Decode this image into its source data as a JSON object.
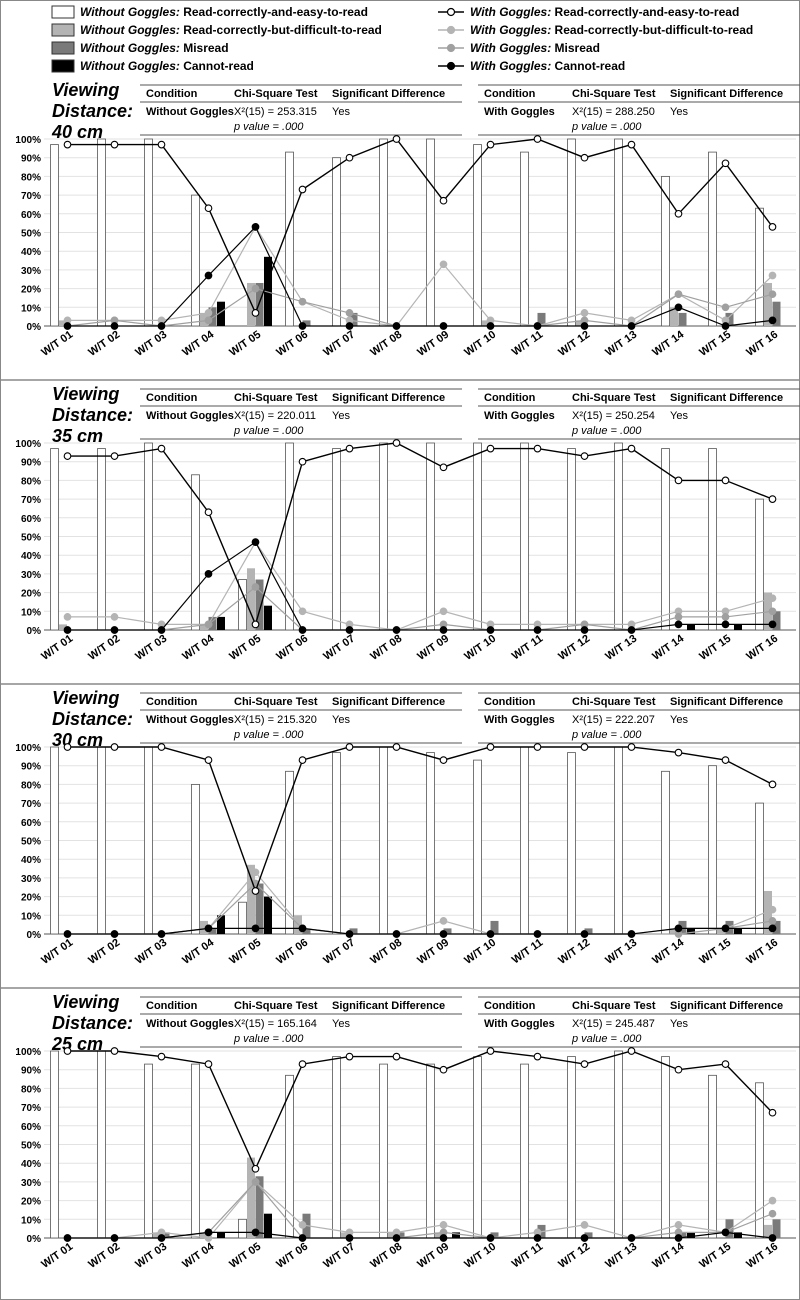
{
  "legend": {
    "left": [
      {
        "prefix": "Without Goggles:",
        "text": "Read-correctly-and-easy-to-read",
        "key": "easy",
        "kind": "bar"
      },
      {
        "prefix": "Without Goggles:",
        "text": "Read-correctly-but-difficult-to-read",
        "key": "diff",
        "kind": "bar"
      },
      {
        "prefix": "Without Goggles:",
        "text": "Misread",
        "key": "mis",
        "kind": "bar"
      },
      {
        "prefix": "Without Goggles:",
        "text": "Cannot-read",
        "key": "cant",
        "kind": "bar"
      }
    ],
    "right": [
      {
        "prefix": "With Goggles:",
        "text": "Read-correctly-and-easy-to-read",
        "key": "easy",
        "kind": "line"
      },
      {
        "prefix": "With Goggles:",
        "text": "Read-correctly-but-difficult-to-read",
        "key": "diff",
        "kind": "line"
      },
      {
        "prefix": "With Goggles:",
        "text": "Misread",
        "key": "mis",
        "kind": "line"
      },
      {
        "prefix": "With Goggles:",
        "text": "Cannot-read",
        "key": "cant",
        "kind": "line"
      }
    ]
  },
  "colors": {
    "easy": "#ffffff",
    "diff": "#b4b4b4",
    "mis": "#7a7a7a",
    "cant": "#000000",
    "easy_line": "#000000",
    "diff_line": "#b4b4b4",
    "mis_line": "#a0a0a0",
    "cant_line": "#000000"
  },
  "table_headers": [
    "Condition",
    "Chi-Square Test",
    "Significant Difference"
  ],
  "chart_data": [
    {
      "type": "bar",
      "title_lines": [
        "Viewing",
        "Distance:",
        "40 cm"
      ],
      "categories": [
        "W/T 01",
        "W/T 02",
        "W/T 03",
        "W/T 04",
        "W/T 05",
        "W/T 06",
        "W/T 07",
        "W/T 08",
        "W/T 09",
        "W/T 10",
        "W/T 11",
        "W/T 12",
        "W/T 13",
        "W/T 14",
        "W/T 15",
        "W/T 16"
      ],
      "y_ticks": [
        "0%",
        "10%",
        "20%",
        "30%",
        "40%",
        "50%",
        "60%",
        "70%",
        "80%",
        "90%",
        "100%"
      ],
      "ylim": [
        0,
        100
      ],
      "stats": [
        {
          "condition": "Without Goggles",
          "chi": "X²(15) = 253.315",
          "p": "p value = .000",
          "sig": "Yes"
        },
        {
          "condition": "With Goggles",
          "chi": "X²(15) = 288.250",
          "p": "p value = .000",
          "sig": "Yes"
        }
      ],
      "without": {
        "easy": [
          97,
          100,
          100,
          70,
          0,
          93,
          90,
          100,
          100,
          97,
          93,
          100,
          100,
          80,
          93,
          63
        ],
        "diff": [
          3,
          0,
          0,
          7,
          23,
          0,
          0,
          0,
          0,
          3,
          0,
          3,
          0,
          10,
          0,
          23
        ],
        "mis": [
          0,
          0,
          0,
          10,
          23,
          3,
          7,
          0,
          0,
          0,
          7,
          0,
          0,
          7,
          7,
          13
        ],
        "cant": [
          0,
          0,
          0,
          13,
          37,
          0,
          0,
          0,
          0,
          0,
          0,
          0,
          0,
          0,
          0,
          0
        ]
      },
      "with": {
        "easy": [
          97,
          97,
          97,
          63,
          7,
          73,
          90,
          100,
          67,
          97,
          100,
          90,
          97,
          60,
          87,
          53
        ],
        "diff": [
          3,
          3,
          3,
          7,
          53,
          13,
          3,
          0,
          33,
          3,
          0,
          7,
          3,
          17,
          3,
          27
        ],
        "mis": [
          0,
          3,
          0,
          3,
          20,
          13,
          7,
          0,
          0,
          0,
          0,
          3,
          0,
          17,
          10,
          17
        ],
        "cant": [
          0,
          0,
          0,
          27,
          53,
          0,
          0,
          0,
          0,
          0,
          0,
          0,
          0,
          10,
          0,
          3
        ]
      }
    },
    {
      "type": "bar",
      "title_lines": [
        "Viewing",
        "Distance:",
        "35 cm"
      ],
      "categories": [
        "W/T 01",
        "W/T 02",
        "W/T 03",
        "W/T 04",
        "W/T 05",
        "W/T 06",
        "W/T 07",
        "W/T 08",
        "W/T 09",
        "W/T 10",
        "W/T 11",
        "W/T 12",
        "W/T 13",
        "W/T 14",
        "W/T 15",
        "W/T 16"
      ],
      "y_ticks": [
        "0%",
        "10%",
        "20%",
        "30%",
        "40%",
        "50%",
        "60%",
        "70%",
        "80%",
        "90%",
        "100%"
      ],
      "ylim": [
        0,
        100
      ],
      "stats": [
        {
          "condition": "Without Goggles",
          "chi": "X²(15) = 220.011",
          "p": "p value = .000",
          "sig": "Yes"
        },
        {
          "condition": "With Goggles",
          "chi": "X²(15) = 250.254",
          "p": "p value = .000",
          "sig": "Yes"
        }
      ],
      "without": {
        "easy": [
          97,
          97,
          100,
          83,
          27,
          100,
          97,
          100,
          100,
          100,
          100,
          97,
          100,
          97,
          97,
          70
        ],
        "diff": [
          3,
          0,
          0,
          3,
          33,
          0,
          0,
          0,
          0,
          0,
          0,
          0,
          0,
          0,
          0,
          20
        ],
        "mis": [
          0,
          0,
          0,
          7,
          27,
          0,
          0,
          0,
          0,
          0,
          0,
          0,
          0,
          0,
          0,
          10
        ],
        "cant": [
          0,
          0,
          0,
          7,
          13,
          0,
          0,
          0,
          0,
          0,
          0,
          0,
          0,
          3,
          3,
          0
        ]
      },
      "with": {
        "easy": [
          93,
          93,
          97,
          63,
          3,
          90,
          97,
          100,
          87,
          97,
          97,
          93,
          97,
          80,
          80,
          70
        ],
        "diff": [
          7,
          7,
          3,
          3,
          47,
          10,
          3,
          0,
          10,
          3,
          3,
          3,
          3,
          10,
          10,
          17
        ],
        "mis": [
          0,
          0,
          0,
          3,
          23,
          0,
          0,
          0,
          3,
          0,
          0,
          3,
          0,
          7,
          7,
          10
        ],
        "cant": [
          0,
          0,
          0,
          30,
          47,
          0,
          0,
          0,
          0,
          0,
          0,
          0,
          0,
          3,
          3,
          3
        ]
      }
    },
    {
      "type": "bar",
      "title_lines": [
        "Viewing",
        "Distance:",
        "30 cm"
      ],
      "categories": [
        "W/T 01",
        "W/T 02",
        "W/T 03",
        "W/T 04",
        "W/T 05",
        "W/T 06",
        "W/T 07",
        "W/T 08",
        "W/T 09",
        "W/T 10",
        "W/T 11",
        "W/T 12",
        "W/T 13",
        "W/T 14",
        "W/T 15",
        "W/T 16"
      ],
      "y_ticks": [
        "0%",
        "10%",
        "20%",
        "30%",
        "40%",
        "50%",
        "60%",
        "70%",
        "80%",
        "90%",
        "100%"
      ],
      "ylim": [
        0,
        100
      ],
      "stats": [
        {
          "condition": "Without Goggles",
          "chi": "X²(15) = 215.320",
          "p": "p value = .000",
          "sig": "Yes"
        },
        {
          "condition": "With Goggles",
          "chi": "X²(15) = 222.207",
          "p": "p value = .000",
          "sig": "Yes"
        }
      ],
      "without": {
        "easy": [
          100,
          100,
          100,
          80,
          17,
          87,
          97,
          100,
          97,
          93,
          100,
          97,
          100,
          87,
          90,
          70
        ],
        "diff": [
          0,
          0,
          0,
          7,
          37,
          10,
          0,
          0,
          0,
          0,
          0,
          0,
          0,
          3,
          3,
          23
        ],
        "mis": [
          0,
          0,
          0,
          3,
          27,
          3,
          3,
          0,
          3,
          7,
          0,
          3,
          0,
          7,
          7,
          7
        ],
        "cant": [
          0,
          0,
          0,
          10,
          20,
          0,
          0,
          0,
          0,
          0,
          0,
          0,
          0,
          3,
          3,
          0
        ]
      },
      "with": {
        "easy": [
          100,
          100,
          100,
          93,
          23,
          93,
          100,
          100,
          93,
          100,
          100,
          100,
          100,
          97,
          93,
          80
        ],
        "diff": [
          0,
          0,
          0,
          3,
          33,
          3,
          0,
          0,
          7,
          0,
          0,
          0,
          0,
          3,
          3,
          13
        ],
        "mis": [
          0,
          0,
          0,
          3,
          27,
          3,
          0,
          0,
          0,
          0,
          0,
          0,
          0,
          0,
          3,
          7
        ],
        "cant": [
          0,
          0,
          0,
          3,
          3,
          3,
          0,
          0,
          0,
          0,
          0,
          0,
          0,
          3,
          3,
          3
        ]
      }
    },
    {
      "type": "bar",
      "title_lines": [
        "Viewing",
        "Distance:",
        "25 cm"
      ],
      "categories": [
        "W/T 01",
        "W/T 02",
        "W/T 03",
        "W/T 04",
        "W/T 05",
        "W/T 06",
        "W/T 07",
        "W/T 08",
        "W/T 09",
        "W/T 10",
        "W/T 11",
        "W/T 12",
        "W/T 13",
        "W/T 14",
        "W/T 15",
        "W/T 16"
      ],
      "y_ticks": [
        "0%",
        "10%",
        "20%",
        "30%",
        "40%",
        "50%",
        "60%",
        "70%",
        "80%",
        "90%",
        "100%"
      ],
      "ylim": [
        0,
        100
      ],
      "stats": [
        {
          "condition": "Without Goggles",
          "chi": "X²(15) = 165.164",
          "p": "p value = .000",
          "sig": "Yes"
        },
        {
          "condition": "With Goggles",
          "chi": "X²(15) = 245.487",
          "p": "p value = .000",
          "sig": "Yes"
        }
      ],
      "without": {
        "easy": [
          100,
          100,
          93,
          93,
          10,
          87,
          97,
          93,
          93,
          97,
          93,
          97,
          100,
          97,
          87,
          83
        ],
        "diff": [
          0,
          0,
          3,
          3,
          43,
          0,
          3,
          3,
          3,
          0,
          0,
          0,
          0,
          0,
          0,
          7
        ],
        "mis": [
          0,
          0,
          3,
          0,
          33,
          13,
          0,
          3,
          0,
          3,
          7,
          3,
          0,
          3,
          10,
          10
        ],
        "cant": [
          0,
          0,
          0,
          3,
          13,
          0,
          0,
          0,
          3,
          0,
          0,
          0,
          0,
          3,
          3,
          0
        ]
      },
      "with": {
        "easy": [
          100,
          100,
          97,
          93,
          37,
          93,
          97,
          97,
          90,
          100,
          97,
          93,
          100,
          90,
          93,
          67
        ],
        "diff": [
          0,
          0,
          3,
          0,
          30,
          7,
          3,
          3,
          7,
          0,
          3,
          7,
          0,
          7,
          3,
          20
        ],
        "mis": [
          0,
          0,
          0,
          3,
          30,
          0,
          0,
          0,
          3,
          0,
          0,
          0,
          0,
          3,
          3,
          13
        ],
        "cant": [
          0,
          0,
          0,
          3,
          3,
          0,
          0,
          0,
          0,
          0,
          0,
          0,
          0,
          0,
          3,
          0
        ]
      }
    }
  ]
}
